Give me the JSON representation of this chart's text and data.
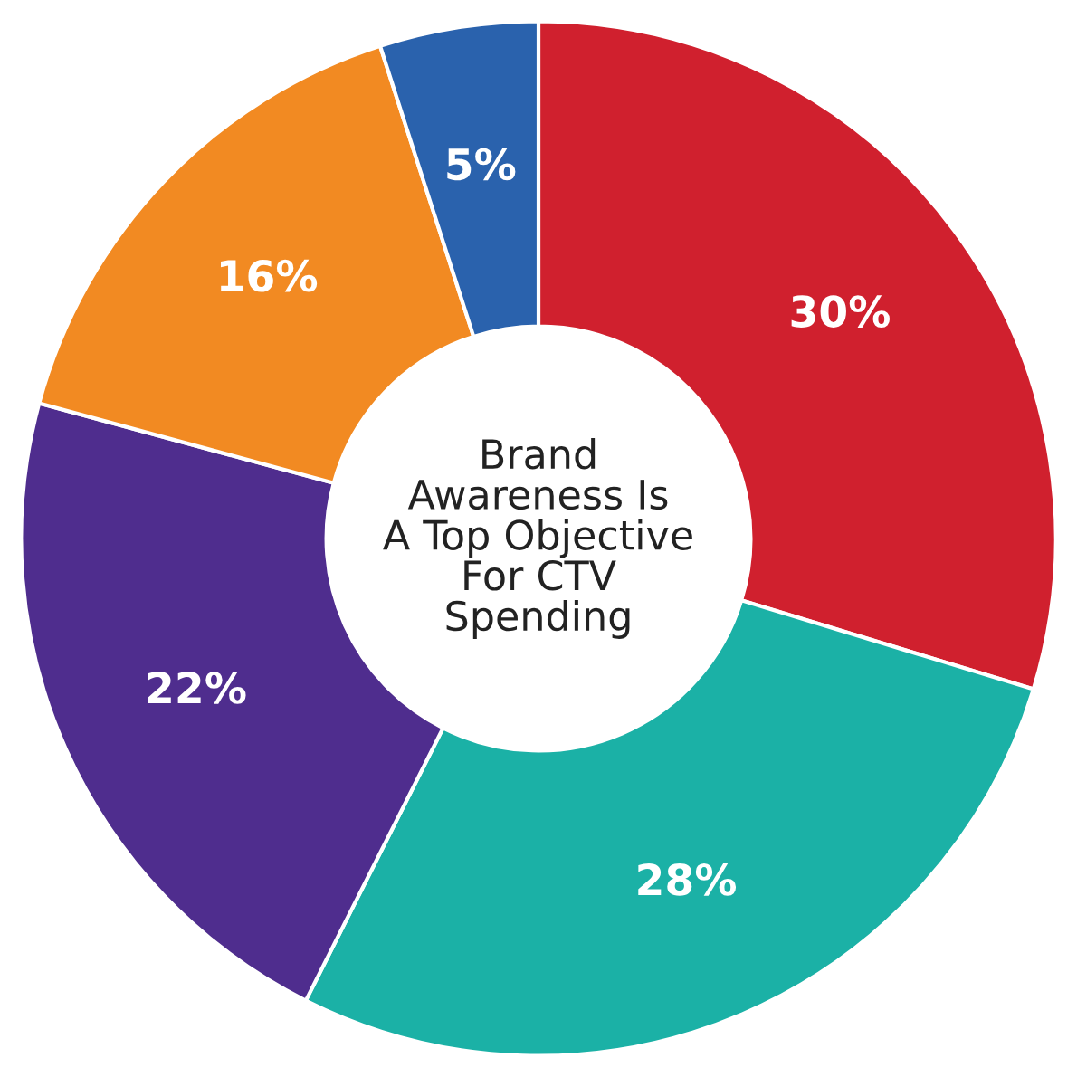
{
  "chart_data": {
    "type": "donut",
    "title": "Brand\nAwareness Is\nA Top Objective\nFor CTV\nSpending",
    "categories": [
      null,
      null,
      null,
      null,
      null
    ],
    "values": [
      30,
      28,
      22,
      16,
      5
    ],
    "colors": [
      "#d0202e",
      "#1bb1a6",
      "#4f2d8e",
      "#f28a22",
      "#2a62ad"
    ],
    "value_labels": [
      "30%",
      "28%",
      "22%",
      "16%",
      "5%"
    ],
    "legend": false
  }
}
